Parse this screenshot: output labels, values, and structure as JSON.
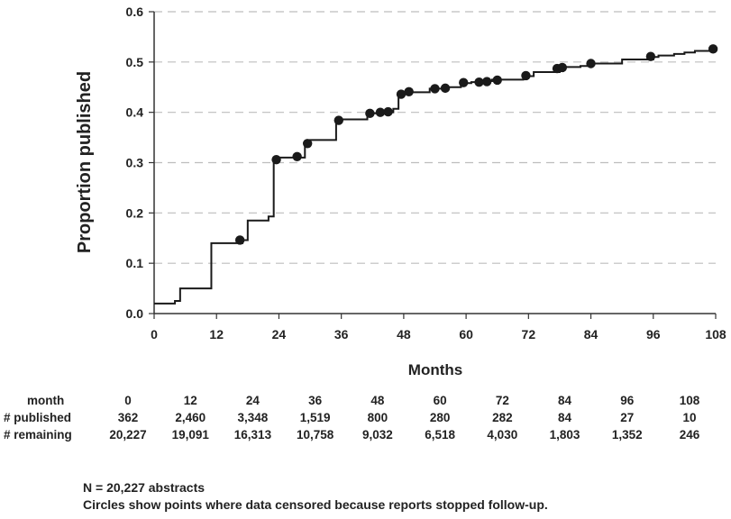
{
  "chart_data": {
    "type": "line",
    "step": true,
    "title": "",
    "xlabel": "Months",
    "ylabel": "Proportion published",
    "xlim": [
      0,
      108
    ],
    "ylim": [
      0,
      0.6
    ],
    "xticks": [
      "0",
      "12",
      "24",
      "36",
      "48",
      "60",
      "72",
      "84",
      "96",
      "108"
    ],
    "yticks": [
      "0.0",
      "0.1",
      "0.2",
      "0.3",
      "0.4",
      "0.5",
      "0.6"
    ],
    "grid": "horizontal dashed",
    "line_color": "#1a1a1a",
    "series": [
      {
        "x": [
          0,
          4,
          5,
          11,
          11,
          17,
          18,
          22,
          23,
          24,
          29,
          30,
          35,
          36,
          41,
          43,
          46,
          47,
          48,
          53,
          56,
          59,
          61,
          63,
          65,
          71,
          73,
          78,
          79,
          82,
          84,
          85,
          90,
          96,
          97,
          100,
          102,
          104,
          108
        ],
        "y": [
          0.02,
          0.025,
          0.05,
          0.058,
          0.14,
          0.146,
          0.185,
          0.193,
          0.305,
          0.31,
          0.335,
          0.345,
          0.385,
          0.386,
          0.398,
          0.4,
          0.407,
          0.435,
          0.44,
          0.447,
          0.45,
          0.458,
          0.46,
          0.462,
          0.465,
          0.472,
          0.48,
          0.485,
          0.49,
          0.492,
          0.497,
          0.497,
          0.505,
          0.51,
          0.513,
          0.516,
          0.519,
          0.522,
          0.527
        ]
      }
    ],
    "censored_points": [
      {
        "x": 16.5,
        "y": 0.146
      },
      {
        "x": 23.5,
        "y": 0.306
      },
      {
        "x": 27.5,
        "y": 0.312
      },
      {
        "x": 29.5,
        "y": 0.338
      },
      {
        "x": 35.5,
        "y": 0.384
      },
      {
        "x": 41.5,
        "y": 0.398
      },
      {
        "x": 43.5,
        "y": 0.4
      },
      {
        "x": 45.0,
        "y": 0.401
      },
      {
        "x": 47.5,
        "y": 0.436
      },
      {
        "x": 49.0,
        "y": 0.441
      },
      {
        "x": 54.0,
        "y": 0.447
      },
      {
        "x": 56.0,
        "y": 0.448
      },
      {
        "x": 59.5,
        "y": 0.459
      },
      {
        "x": 62.5,
        "y": 0.46
      },
      {
        "x": 64.0,
        "y": 0.461
      },
      {
        "x": 66.0,
        "y": 0.464
      },
      {
        "x": 71.5,
        "y": 0.473
      },
      {
        "x": 77.5,
        "y": 0.487
      },
      {
        "x": 78.5,
        "y": 0.489
      },
      {
        "x": 84.0,
        "y": 0.497
      },
      {
        "x": 95.5,
        "y": 0.511
      },
      {
        "x": 107.5,
        "y": 0.526
      }
    ]
  },
  "risk_table": {
    "header_label": "month",
    "months": [
      "0",
      "12",
      "24",
      "36",
      "48",
      "60",
      "72",
      "84",
      "96",
      "108"
    ],
    "rows": [
      {
        "label": "# published",
        "values": [
          "362",
          "2,460",
          "3,348",
          "1,519",
          "800",
          "280",
          "282",
          "84",
          "27",
          "10"
        ]
      },
      {
        "label": "# remaining",
        "values": [
          "20,227",
          "19,091",
          "16,313",
          "10,758",
          "9,032",
          "6,518",
          "4,030",
          "1,803",
          "1,352",
          "246"
        ]
      }
    ]
  },
  "footnotes": {
    "n_line": "N = 20,227 abstracts",
    "circles_line": "Circles show points where data censored because reports stopped follow-up."
  }
}
